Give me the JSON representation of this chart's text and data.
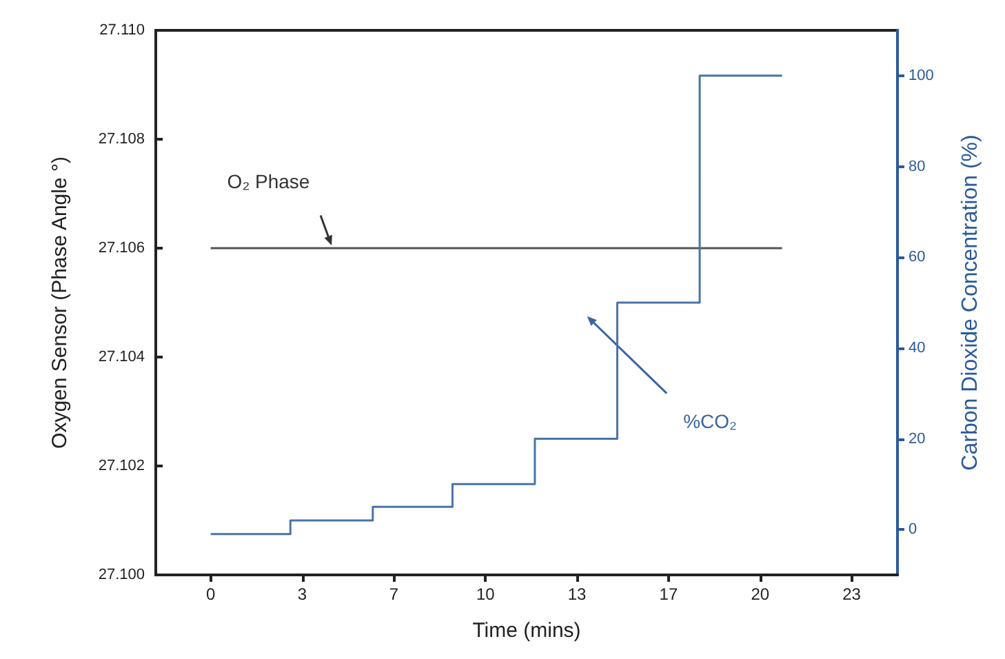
{
  "chart_data": {
    "type": "line",
    "xlabel": "Time (mins)",
    "ylabel": "Oxygen Sensor (Phase Angle °)",
    "y2label": "Carbon Dioxide Concentration (%)",
    "xlim": [
      -2,
      25
    ],
    "xticks": [
      0,
      {
        "value": 3.333,
        "label": "3"
      },
      {
        "value": 6.667,
        "label": "7"
      },
      10,
      {
        "value": 13.333,
        "label": "13"
      },
      {
        "value": 16.667,
        "label": "17"
      },
      20,
      {
        "value": 23.333,
        "label": "23"
      }
    ],
    "ylim": [
      27.1,
      27.11
    ],
    "yticks": [
      {
        "value": 27.1,
        "label": "27.100"
      },
      {
        "value": 27.102,
        "label": "27.102"
      },
      {
        "value": 27.104,
        "label": "27.104"
      },
      {
        "value": 27.106,
        "label": "27.106"
      },
      {
        "value": 27.108,
        "label": "27.108"
      },
      {
        "value": 27.11,
        "label": "27.110"
      }
    ],
    "y2lim": [
      -10,
      110
    ],
    "y2ticks": [
      0,
      20,
      40,
      60,
      80,
      100
    ],
    "legend": false,
    "grid": false,
    "marker": "none",
    "series": [
      {
        "name": "O₂ Phase",
        "color": "#555555",
        "x": [
          0,
          20.8
        ],
        "values": [
          27.106,
          27.106
        ]
      },
      {
        "name": "%CO₂",
        "type": "step",
        "axis": "y2",
        "color": "#4a74a8",
        "x": [
          0,
          2.9,
          5.9,
          8.8,
          11.8,
          14.8,
          17.8,
          20.8
        ],
        "values": [
          -1,
          2,
          5,
          10,
          20,
          50,
          100,
          100
        ]
      }
    ]
  }
}
